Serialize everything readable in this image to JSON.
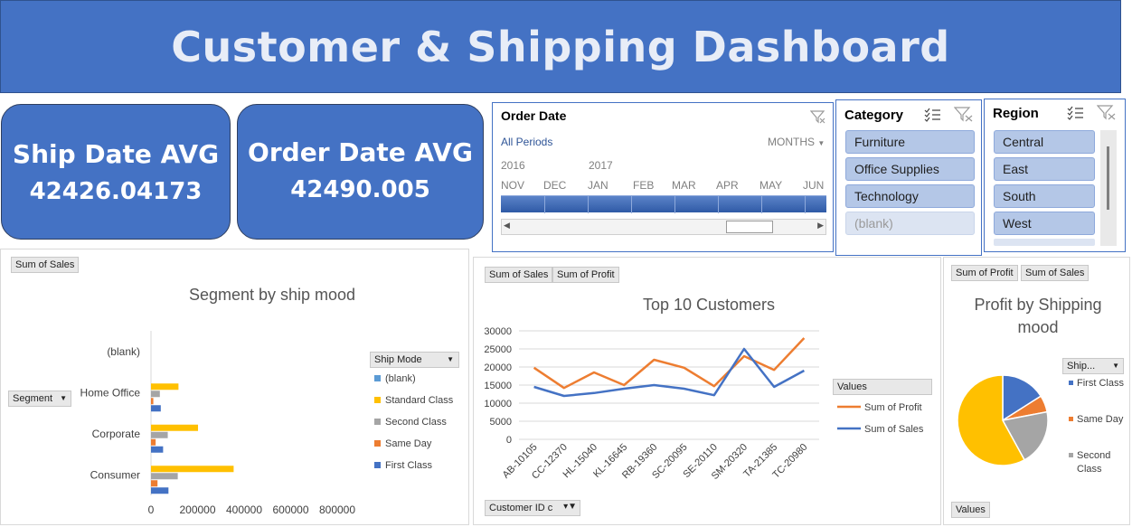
{
  "header": {
    "title": "Customer & Shipping Dashboard"
  },
  "kpis": [
    {
      "label": "Ship Date AVG",
      "value": "42426.04173"
    },
    {
      "label": "Order Date AVG",
      "value": "42490.005"
    }
  ],
  "timeline": {
    "title": "Order Date",
    "periods_label": "All Periods",
    "level": "MONTHS",
    "years": [
      "2016",
      "2017"
    ],
    "months": [
      "NOV",
      "DEC",
      "JAN",
      "FEB",
      "MAR",
      "APR",
      "MAY",
      "JUN"
    ]
  },
  "category_slicer": {
    "title": "Category",
    "items": [
      "Furniture",
      "Office Supplies",
      "Technology",
      "(blank)"
    ]
  },
  "region_slicer": {
    "title": "Region",
    "items": [
      "Central",
      "East",
      "South",
      "West"
    ]
  },
  "segment_chart": {
    "field_button": "Sum of Sales",
    "axis_button": "Segment",
    "legend_button": "Ship Mode",
    "chart_data": {
      "type": "bar",
      "title": "Segment by ship mood",
      "categories": [
        "Consumer",
        "Corporate",
        "Home Office",
        "(blank)"
      ],
      "series": [
        {
          "name": "First Class",
          "values": [
            75000,
            52000,
            42000,
            0
          ]
        },
        {
          "name": "Same Day",
          "values": [
            28000,
            20000,
            10000,
            0
          ]
        },
        {
          "name": "Second Class",
          "values": [
            115000,
            72000,
            38000,
            0
          ]
        },
        {
          "name": "Standard Class",
          "values": [
            355000,
            202000,
            118000,
            0
          ]
        },
        {
          "name": "(blank)",
          "values": [
            0,
            0,
            0,
            0
          ]
        }
      ],
      "xlim": [
        0,
        800000
      ],
      "xticks": [
        "0",
        "200000",
        "400000",
        "600000",
        "800000"
      ],
      "colors": {
        "First Class": "#4472c4",
        "Same Day": "#ed7d31",
        "Second Class": "#a5a5a5",
        "Standard Class": "#ffc000",
        "(blank)": "#5b9bd5"
      },
      "legend_order": [
        "(blank)",
        "Standard Class",
        "Second Class",
        "Same Day",
        "First Class"
      ]
    }
  },
  "top_customers": {
    "field_buttons": [
      "Sum of Sales",
      "Sum of Profit"
    ],
    "axis_button": "Customer ID c",
    "legend_title": "Values",
    "chart_data": {
      "type": "line",
      "title": "Top 10 Customers",
      "categories": [
        "AB-10105",
        "CC-12370",
        "HL-15040",
        "KL-16645",
        "RB-19360",
        "SC-20095",
        "SE-20110",
        "SM-20320",
        "TA-21385",
        "TC-20980"
      ],
      "series": [
        {
          "name": "Sum of Profit",
          "values": [
            19800,
            14200,
            18500,
            15000,
            22000,
            19800,
            14700,
            23000,
            19200,
            28000
          ],
          "color": "#ed7d31"
        },
        {
          "name": "Sum of Sales",
          "values": [
            14500,
            12000,
            12800,
            14000,
            15000,
            14000,
            12200,
            25000,
            14500,
            19000
          ],
          "color": "#4472c4"
        }
      ],
      "ylim": [
        0,
        30000
      ],
      "yticks": [
        "0",
        "5000",
        "10000",
        "15000",
        "20000",
        "25000",
        "30000"
      ]
    }
  },
  "profit_pie": {
    "field_buttons": [
      "Sum of Profit",
      "Sum of Sales"
    ],
    "legend_button": "Ship...",
    "values_button": "Values",
    "chart_data": {
      "type": "pie",
      "title": "Profit by Shipping mood",
      "slices": [
        {
          "name": "First Class",
          "value": 16,
          "color": "#4472c4"
        },
        {
          "name": "Same Day",
          "value": 6,
          "color": "#ed7d31"
        },
        {
          "name": "Second Class",
          "value": 20,
          "color": "#a5a5a5"
        },
        {
          "name": "Standard Class",
          "value": 58,
          "color": "#ffc000"
        }
      ],
      "legend_items": [
        "First Class",
        "Same Day",
        "Second Class"
      ]
    }
  }
}
